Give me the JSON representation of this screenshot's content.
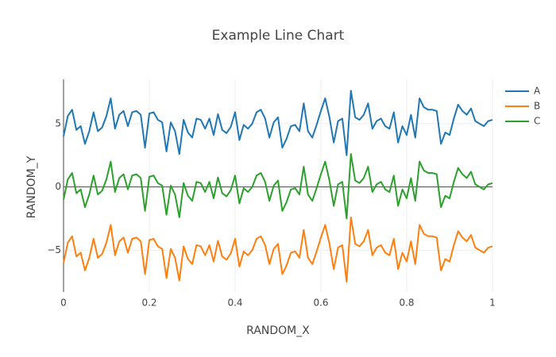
{
  "chart_data": {
    "type": "line",
    "title": "Example Line Chart",
    "xlabel": "RANDOM_X",
    "ylabel": "RANDOM_Y",
    "x": [
      0,
      0.01,
      0.02,
      0.03,
      0.04,
      0.05,
      0.06,
      0.07,
      0.08,
      0.09,
      0.1,
      0.11,
      0.12,
      0.13,
      0.14,
      0.15,
      0.16,
      0.17,
      0.18,
      0.19,
      0.2,
      0.21,
      0.22,
      0.23,
      0.24,
      0.25,
      0.26,
      0.27,
      0.28,
      0.29,
      0.3,
      0.31,
      0.32,
      0.33,
      0.34,
      0.35,
      0.36,
      0.37,
      0.38,
      0.39,
      0.4,
      0.41,
      0.42,
      0.43,
      0.44,
      0.45,
      0.46,
      0.47,
      0.48,
      0.49,
      0.5,
      0.51,
      0.52,
      0.53,
      0.54,
      0.55,
      0.56,
      0.57,
      0.58,
      0.59,
      0.6,
      0.61,
      0.62,
      0.63,
      0.64,
      0.65,
      0.66,
      0.67,
      0.68,
      0.69,
      0.7,
      0.71,
      0.72,
      0.73,
      0.74,
      0.75,
      0.76,
      0.77,
      0.78,
      0.79,
      0.8,
      0.81,
      0.82,
      0.83,
      0.84,
      0.85,
      0.86,
      0.87,
      0.88,
      0.89,
      0.9,
      0.91,
      0.92,
      0.93,
      0.94,
      0.95,
      0.96,
      0.97,
      0.98,
      0.99,
      1
    ],
    "series": [
      {
        "name": "A",
        "color": "#1f77b4",
        "values": [
          4.0,
          5.6,
          6.1,
          4.5,
          4.8,
          3.4,
          4.4,
          5.9,
          4.4,
          4.7,
          5.6,
          7.0,
          4.6,
          5.7,
          6.0,
          4.8,
          5.9,
          6.0,
          5.7,
          3.1,
          5.8,
          5.9,
          5.3,
          5.1,
          2.8,
          5.1,
          4.4,
          2.6,
          5.3,
          4.3,
          3.9,
          5.4,
          5.3,
          4.6,
          5.4,
          4.1,
          5.75,
          4.5,
          4.25,
          4.75,
          5.9,
          3.7,
          4.9,
          4.6,
          5.0,
          5.9,
          6.1,
          5.4,
          3.9,
          5.1,
          5.5,
          3.1,
          3.8,
          4.8,
          4.9,
          4.4,
          6.6,
          4.4,
          3.9,
          4.9,
          6.0,
          7.0,
          5.5,
          3.5,
          5.2,
          5.4,
          2.5,
          7.6,
          5.5,
          5.3,
          5.7,
          6.6,
          4.6,
          5.2,
          5.4,
          4.8,
          4.6,
          5.9,
          3.5,
          4.8,
          4.1,
          5.7,
          3.9,
          7.0,
          6.3,
          6.1,
          6.1,
          6.0,
          3.4,
          4.3,
          4.1,
          5.4,
          6.5,
          6.0,
          5.7,
          6.2,
          5.2,
          5.0,
          4.8,
          5.2,
          5.3
        ]
      },
      {
        "name": "B",
        "color": "#ff7f0e",
        "values": [
          -6.0,
          -4.4,
          -3.9,
          -5.5,
          -5.2,
          -6.6,
          -5.6,
          -4.1,
          -5.6,
          -5.3,
          -4.4,
          -3.0,
          -5.4,
          -4.3,
          -4.0,
          -5.2,
          -4.1,
          -4.0,
          -4.3,
          -6.9,
          -4.2,
          -4.1,
          -4.7,
          -4.9,
          -7.2,
          -4.9,
          -5.6,
          -7.4,
          -4.7,
          -5.7,
          -6.1,
          -4.6,
          -4.7,
          -5.4,
          -4.6,
          -5.9,
          -4.25,
          -5.5,
          -5.75,
          -5.25,
          -4.1,
          -6.3,
          -5.1,
          -5.4,
          -5.0,
          -4.1,
          -3.9,
          -4.6,
          -6.1,
          -4.9,
          -4.5,
          -6.9,
          -6.2,
          -5.2,
          -5.1,
          -5.6,
          -3.4,
          -5.6,
          -6.1,
          -5.1,
          -4.0,
          -3.0,
          -4.5,
          -6.5,
          -4.8,
          -4.6,
          -7.5,
          -2.4,
          -4.5,
          -4.7,
          -4.3,
          -3.4,
          -5.4,
          -4.8,
          -4.6,
          -5.2,
          -5.4,
          -4.1,
          -6.5,
          -5.2,
          -5.9,
          -4.3,
          -6.1,
          -3.0,
          -3.7,
          -3.9,
          -3.9,
          -4.0,
          -6.6,
          -5.7,
          -5.9,
          -4.6,
          -3.5,
          -4.0,
          -4.3,
          -3.8,
          -4.8,
          -5.0,
          -5.2,
          -4.8,
          -4.7
        ]
      },
      {
        "name": "C",
        "color": "#2ca02c",
        "values": [
          -1.0,
          0.6,
          1.1,
          -0.5,
          -0.2,
          -1.6,
          -0.6,
          0.9,
          -0.6,
          -0.3,
          0.6,
          2.0,
          -0.4,
          0.7,
          1.0,
          -0.2,
          0.9,
          1.0,
          0.7,
          -1.9,
          0.8,
          0.9,
          0.3,
          0.1,
          -2.2,
          0.1,
          -0.6,
          -2.4,
          0.3,
          -0.7,
          -1.1,
          0.4,
          0.3,
          -0.4,
          0.4,
          -0.9,
          0.75,
          -0.5,
          -0.75,
          -0.25,
          0.9,
          -1.3,
          -0.1,
          -0.4,
          0.0,
          0.9,
          1.1,
          0.4,
          -1.1,
          0.1,
          0.5,
          -1.9,
          -1.2,
          -0.2,
          -0.1,
          -0.6,
          1.6,
          -0.6,
          -1.1,
          -0.1,
          1.0,
          2.0,
          0.5,
          -1.5,
          0.2,
          0.4,
          -2.5,
          2.6,
          0.5,
          0.3,
          0.7,
          1.6,
          -0.4,
          0.2,
          0.4,
          -0.2,
          -0.4,
          0.9,
          -1.5,
          -0.2,
          -0.9,
          0.7,
          -1.1,
          2.0,
          1.3,
          1.1,
          1.1,
          1.0,
          -1.6,
          -0.7,
          -0.9,
          0.4,
          1.5,
          1.0,
          0.7,
          1.2,
          0.2,
          0.0,
          -0.2,
          0.2,
          0.3
        ]
      }
    ],
    "xlim": [
      0,
      1
    ],
    "xticks": [
      0,
      0.2,
      0.4,
      0.6,
      0.8,
      1
    ],
    "ylim": [
      -8.3,
      8.5
    ],
    "yticks": [
      {
        "value": -5,
        "label": "−5"
      },
      0,
      5
    ],
    "grid": true,
    "legend": "right"
  }
}
